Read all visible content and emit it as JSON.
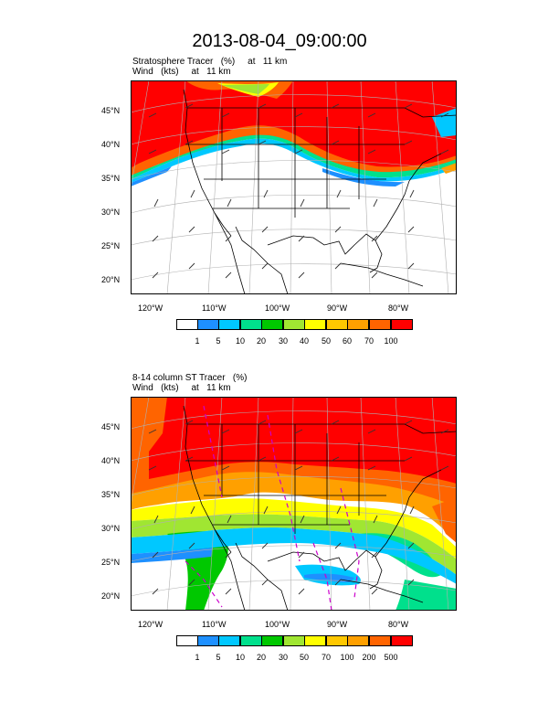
{
  "page_title": "2013-08-04_09:00:00",
  "panels": [
    {
      "title_line1": "Stratosphere Tracer   (%)     at   11 km",
      "title_line2": "Wind   (kts)     at   11 km",
      "lat_labels": [
        "45°N",
        "40°N",
        "35°N",
        "30°N",
        "25°N",
        "20°N"
      ],
      "lon_labels": [
        "120°W",
        "110°W",
        "100°W",
        "90°W",
        "80°W"
      ],
      "colorbar_labels": [
        "1",
        "5",
        "10",
        "20",
        "30",
        "40",
        "50",
        "60",
        "70",
        "100"
      ],
      "colorbar_colors": [
        "#ffffff",
        "#1e90ff",
        "#00c8ff",
        "#00e08c",
        "#00c800",
        "#a0e632",
        "#ffff00",
        "#ffc800",
        "#ffa000",
        "#ff6400",
        "#ff0000"
      ]
    },
    {
      "title_line1": "8-14 column ST Tracer   (%)",
      "title_line2": "Wind   (kts)     at   11 km",
      "lat_labels": [
        "45°N",
        "40°N",
        "35°N",
        "30°N",
        "25°N",
        "20°N"
      ],
      "lon_labels": [
        "120°W",
        "110°W",
        "100°W",
        "90°W",
        "80°W"
      ],
      "colorbar_labels": [
        "1",
        "5",
        "10",
        "20",
        "30",
        "50",
        "70",
        "100",
        "200",
        "500"
      ],
      "colorbar_colors": [
        "#ffffff",
        "#1e90ff",
        "#00c8ff",
        "#00e08c",
        "#00c800",
        "#a0e632",
        "#ffff00",
        "#ffc800",
        "#ffa000",
        "#ff6400",
        "#ff0000"
      ]
    }
  ]
}
